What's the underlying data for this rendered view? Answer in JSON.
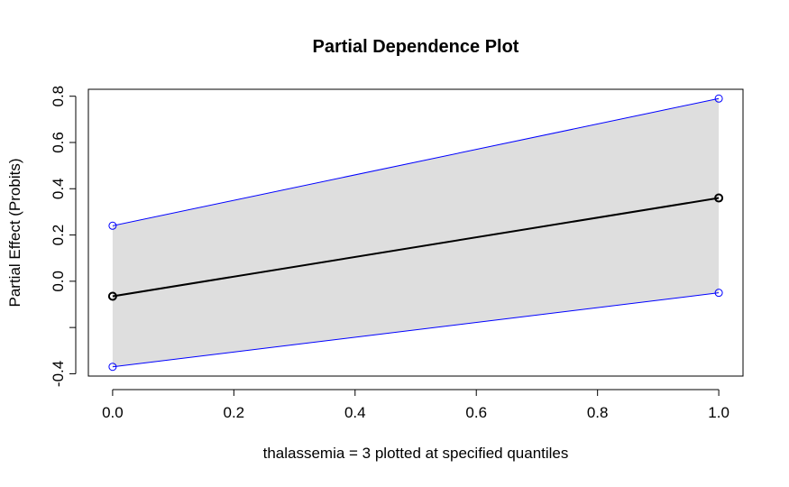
{
  "chart_data": {
    "type": "line",
    "title": "Partial Dependence Plot",
    "xlabel": "thalassemia = 3 plotted at specified quantiles",
    "ylabel": "Partial Effect (Probits)",
    "xlim": [
      -0.04,
      1.04
    ],
    "ylim": [
      -0.41,
      0.83
    ],
    "xticks": [
      0.0,
      0.2,
      0.4,
      0.6,
      0.8,
      1.0
    ],
    "xtick_labels": [
      "0.0",
      "0.2",
      "0.4",
      "0.6",
      "0.8",
      "1.0"
    ],
    "yticks": [
      -0.4,
      0.0,
      0.2,
      0.4,
      0.6,
      0.8
    ],
    "yticks_unlabeled": [
      -0.2
    ],
    "ytick_labels": [
      "-0.4",
      "0.0",
      "0.2",
      "0.4",
      "0.6",
      "0.8"
    ],
    "x": [
      0.0,
      1.0
    ],
    "series": [
      {
        "role": "estimate",
        "values": [
          -0.065,
          0.36
        ],
        "color": "#000000"
      },
      {
        "role": "upper",
        "values": [
          0.24,
          0.79
        ],
        "color": "#0000ff"
      },
      {
        "role": "lower",
        "values": [
          -0.37,
          -0.05
        ],
        "color": "#0000ff"
      }
    ],
    "band_fill": "#dedede",
    "grid": false,
    "legend": "none"
  }
}
